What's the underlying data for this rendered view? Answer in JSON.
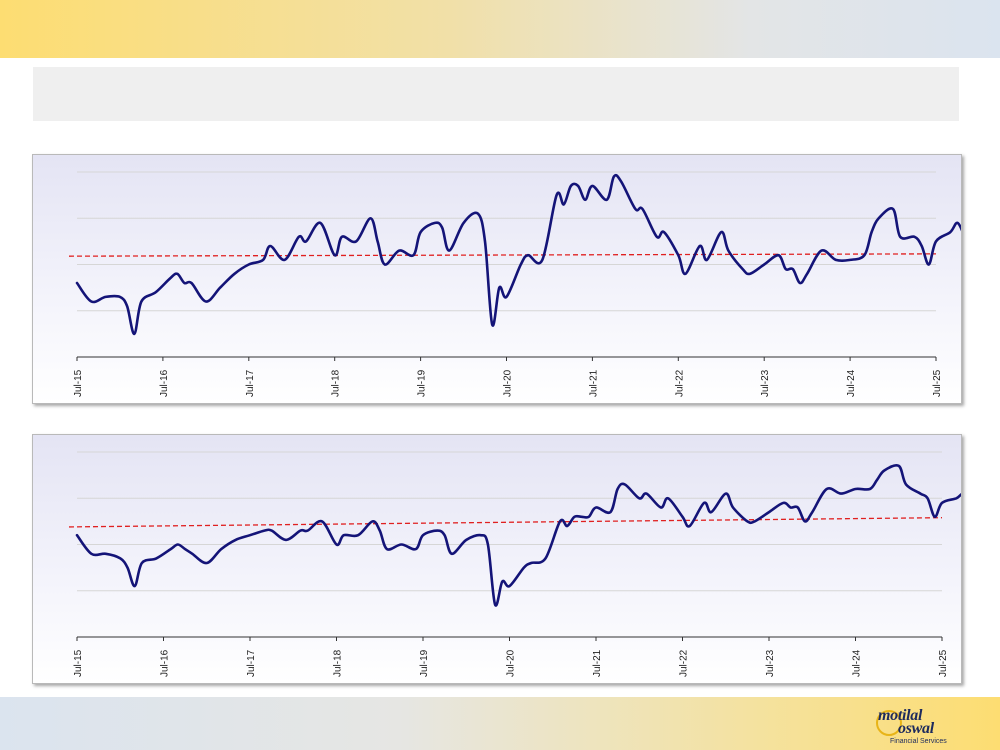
{
  "header": {
    "title": ""
  },
  "colors": {
    "line": "#141478",
    "average": "#e02020",
    "grid": "#d6d6d6",
    "axis": "#333333"
  },
  "chart_data": [
    {
      "type": "line",
      "x_tick_labels": [
        "Jul-15",
        "Jul-16",
        "Jul-17",
        "Jul-18",
        "Jul-19",
        "Jul-20",
        "Jul-21",
        "Jul-22",
        "Jul-23",
        "Jul-24",
        "Jul-25"
      ],
      "x_range": [
        "Jul-15",
        "Jul-25"
      ],
      "ylim": [
        0,
        4
      ],
      "grid": true,
      "series": [
        {
          "points": [
            [
              "Jul-15",
              1.6
            ],
            [
              "Sep-15",
              1.2
            ],
            [
              "Nov-15",
              1.3
            ],
            [
              "Jan-16",
              1.3
            ],
            [
              "Feb-16",
              1.1
            ],
            [
              "Mar-16",
              0.5
            ],
            [
              "Apr-16",
              1.2
            ],
            [
              "Jun-16",
              1.4
            ],
            [
              "Aug-16",
              1.7
            ],
            [
              "Sep-16",
              1.8
            ],
            [
              "Oct-16",
              1.6
            ],
            [
              "Nov-16",
              1.6
            ],
            [
              "Jan-17",
              1.2
            ],
            [
              "Mar-17",
              1.5
            ],
            [
              "May-17",
              1.8
            ],
            [
              "Jul-17",
              2.0
            ],
            [
              "Sep-17",
              2.1
            ],
            [
              "Oct-17",
              2.4
            ],
            [
              "Dec-17",
              2.1
            ],
            [
              "Feb-18",
              2.6
            ],
            [
              "Mar-18",
              2.5
            ],
            [
              "May-18",
              2.9
            ],
            [
              "Jul-18",
              2.2
            ],
            [
              "Aug-18",
              2.6
            ],
            [
              "Oct-18",
              2.5
            ],
            [
              "Dec-18",
              3.0
            ],
            [
              "Jan-19",
              2.5
            ],
            [
              "Feb-19",
              2.0
            ],
            [
              "Apr-19",
              2.3
            ],
            [
              "Jun-19",
              2.2
            ],
            [
              "Jul-19",
              2.7
            ],
            [
              "Sep-19",
              2.9
            ],
            [
              "Oct-19",
              2.8
            ],
            [
              "Nov-19",
              2.3
            ],
            [
              "Jan-20",
              2.9
            ],
            [
              "Mar-20",
              3.1
            ],
            [
              "Apr-20",
              2.5
            ],
            [
              "May-20",
              0.7
            ],
            [
              "Jun-20",
              1.5
            ],
            [
              "Jul-20",
              1.3
            ],
            [
              "Sep-20",
              2.0
            ],
            [
              "Oct-20",
              2.2
            ],
            [
              "Dec-20",
              2.1
            ],
            [
              "Feb-21",
              3.5
            ],
            [
              "Mar-21",
              3.3
            ],
            [
              "Apr-21",
              3.7
            ],
            [
              "May-21",
              3.7
            ],
            [
              "Jun-21",
              3.4
            ],
            [
              "Jul-21",
              3.7
            ],
            [
              "Sep-21",
              3.4
            ],
            [
              "Oct-21",
              3.9
            ],
            [
              "Nov-21",
              3.8
            ],
            [
              "Jan-22",
              3.2
            ],
            [
              "Feb-22",
              3.2
            ],
            [
              "Apr-22",
              2.6
            ],
            [
              "May-22",
              2.7
            ],
            [
              "Jul-22",
              2.2
            ],
            [
              "Aug-22",
              1.8
            ],
            [
              "Oct-22",
              2.4
            ],
            [
              "Nov-22",
              2.1
            ],
            [
              "Jan-23",
              2.7
            ],
            [
              "Feb-23",
              2.3
            ],
            [
              "Apr-23",
              1.9
            ],
            [
              "May-23",
              1.8
            ],
            [
              "Jul-23",
              2.0
            ],
            [
              "Sep-23",
              2.2
            ],
            [
              "Oct-23",
              1.9
            ],
            [
              "Nov-23",
              1.9
            ],
            [
              "Dec-23",
              1.6
            ],
            [
              "Jan-24",
              1.8
            ],
            [
              "Mar-24",
              2.3
            ],
            [
              "May-24",
              2.1
            ],
            [
              "Jul-24",
              2.1
            ],
            [
              "Sep-24",
              2.2
            ],
            [
              "Oct-24",
              2.7
            ],
            [
              "Nov-24",
              3.0
            ],
            [
              "Jan-25",
              3.2
            ],
            [
              "Feb-25",
              2.6
            ],
            [
              "Apr-25",
              2.6
            ],
            [
              "May-25",
              2.4
            ],
            [
              "Jun-25",
              2.0
            ],
            [
              "Jul-25",
              2.5
            ],
            [
              "Sep-25",
              2.7
            ],
            [
              "Oct-25",
              2.9
            ],
            [
              "Nov-25",
              2.6
            ]
          ]
        }
      ],
      "average_line": {
        "style": "dashed",
        "start": 2.18,
        "end": 2.23
      }
    },
    {
      "type": "line",
      "x_tick_labels": [
        "Jul-15",
        "Jul-16",
        "Jul-17",
        "Jul-18",
        "Jul-19",
        "Jul-20",
        "Jul-21",
        "Jul-22",
        "Jul-23",
        "Jul-24",
        "Jul-25"
      ],
      "x_range": [
        "Jul-15",
        "Jul-25"
      ],
      "ylim": [
        0,
        4
      ],
      "grid": true,
      "series": [
        {
          "points": [
            [
              "Jul-15",
              2.2
            ],
            [
              "Sep-15",
              1.8
            ],
            [
              "Nov-15",
              1.8
            ],
            [
              "Jan-16",
              1.7
            ],
            [
              "Feb-16",
              1.5
            ],
            [
              "Mar-16",
              1.1
            ],
            [
              "Apr-16",
              1.6
            ],
            [
              "Jun-16",
              1.7
            ],
            [
              "Aug-16",
              1.9
            ],
            [
              "Sep-16",
              2.0
            ],
            [
              "Oct-16",
              1.9
            ],
            [
              "Nov-16",
              1.8
            ],
            [
              "Jan-17",
              1.6
            ],
            [
              "Mar-17",
              1.9
            ],
            [
              "May-17",
              2.1
            ],
            [
              "Jul-17",
              2.2
            ],
            [
              "Sep-17",
              2.3
            ],
            [
              "Oct-17",
              2.3
            ],
            [
              "Dec-17",
              2.1
            ],
            [
              "Feb-18",
              2.3
            ],
            [
              "Mar-18",
              2.3
            ],
            [
              "May-18",
              2.5
            ],
            [
              "Jul-18",
              2.0
            ],
            [
              "Aug-18",
              2.2
            ],
            [
              "Oct-18",
              2.2
            ],
            [
              "Dec-18",
              2.5
            ],
            [
              "Jan-19",
              2.3
            ],
            [
              "Feb-19",
              1.9
            ],
            [
              "Apr-19",
              2.0
            ],
            [
              "Jun-19",
              1.9
            ],
            [
              "Jul-19",
              2.2
            ],
            [
              "Sep-19",
              2.3
            ],
            [
              "Oct-19",
              2.2
            ],
            [
              "Nov-19",
              1.8
            ],
            [
              "Jan-20",
              2.1
            ],
            [
              "Mar-20",
              2.2
            ],
            [
              "Apr-20",
              2.0
            ],
            [
              "May-20",
              0.7
            ],
            [
              "Jun-20",
              1.2
            ],
            [
              "Jul-20",
              1.1
            ],
            [
              "Sep-20",
              1.5
            ],
            [
              "Oct-20",
              1.6
            ],
            [
              "Dec-20",
              1.7
            ],
            [
              "Feb-21",
              2.5
            ],
            [
              "Mar-21",
              2.4
            ],
            [
              "Apr-21",
              2.6
            ],
            [
              "May-21",
              2.6
            ],
            [
              "Jun-21",
              2.6
            ],
            [
              "Jul-21",
              2.8
            ],
            [
              "Sep-21",
              2.7
            ],
            [
              "Oct-21",
              3.2
            ],
            [
              "Nov-21",
              3.3
            ],
            [
              "Jan-22",
              3.0
            ],
            [
              "Feb-22",
              3.1
            ],
            [
              "Apr-22",
              2.8
            ],
            [
              "May-22",
              3.0
            ],
            [
              "Jul-22",
              2.6
            ],
            [
              "Aug-22",
              2.4
            ],
            [
              "Oct-22",
              2.9
            ],
            [
              "Nov-22",
              2.7
            ],
            [
              "Jan-23",
              3.1
            ],
            [
              "Feb-23",
              2.8
            ],
            [
              "Apr-23",
              2.5
            ],
            [
              "May-23",
              2.5
            ],
            [
              "Jul-23",
              2.7
            ],
            [
              "Sep-23",
              2.9
            ],
            [
              "Oct-23",
              2.8
            ],
            [
              "Nov-23",
              2.8
            ],
            [
              "Dec-23",
              2.5
            ],
            [
              "Jan-24",
              2.7
            ],
            [
              "Mar-24",
              3.2
            ],
            [
              "May-24",
              3.1
            ],
            [
              "Jul-24",
              3.2
            ],
            [
              "Sep-24",
              3.2
            ],
            [
              "Oct-24",
              3.4
            ],
            [
              "Nov-24",
              3.6
            ],
            [
              "Jan-25",
              3.7
            ],
            [
              "Feb-25",
              3.3
            ],
            [
              "Apr-25",
              3.1
            ],
            [
              "May-25",
              3.0
            ],
            [
              "Jun-25",
              2.6
            ],
            [
              "Jul-25",
              2.9
            ],
            [
              "Sep-25",
              3.0
            ],
            [
              "Oct-25",
              3.1
            ],
            [
              "Nov-25",
              2.9
            ]
          ]
        }
      ],
      "average_line": {
        "style": "dashed",
        "start": 2.38,
        "end": 2.58
      }
    }
  ]
}
